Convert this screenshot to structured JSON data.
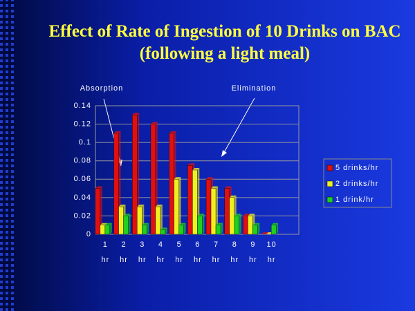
{
  "chart_data": {
    "type": "bar",
    "title": "Effect of Rate of Ingestion of 10 Drinks on BAC (following a light meal)",
    "annotations": [
      "Absorption",
      "Elimination"
    ],
    "categories": [
      "1 hr",
      "2 hr",
      "3 hr",
      "4 hr",
      "5 hr",
      "6 hr",
      "7 hr",
      "8 hr",
      "9 hr",
      "10 hr"
    ],
    "series": [
      {
        "name": "5 drinks/hr",
        "color": "#e01010",
        "values": [
          0.05,
          0.11,
          0.13,
          0.12,
          0.11,
          0.075,
          0.06,
          0.05,
          0.02,
          0
        ]
      },
      {
        "name": "2 drinks/hr",
        "color": "#f0f020",
        "values": [
          0.01,
          0.03,
          0.03,
          0.03,
          0.06,
          0.07,
          0.05,
          0.04,
          0.02,
          0
        ]
      },
      {
        "name": "1 drink/hr",
        "color": "#20d020",
        "values": [
          0.01,
          0.02,
          0.01,
          0.005,
          0.01,
          0.02,
          0.01,
          0.02,
          0.01,
          0.01
        ]
      }
    ],
    "ylim": [
      0,
      0.14
    ],
    "yticks": [
      0,
      0.02,
      0.04,
      0.06,
      0.08,
      0.1,
      0.12,
      0.14
    ],
    "grid": true,
    "legend": "right"
  }
}
